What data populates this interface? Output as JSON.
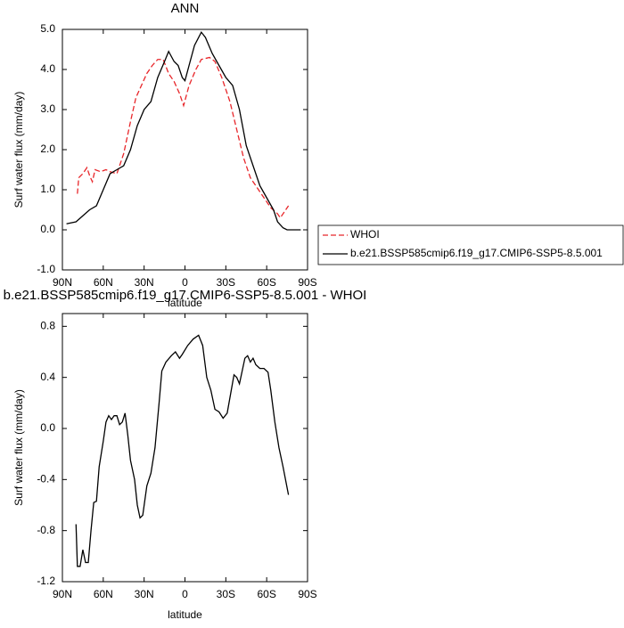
{
  "chart_data": [
    {
      "type": "line",
      "title": "ANN",
      "xlabel": "latitude",
      "ylabel": "Surf water flux (mm/day)",
      "xlim": [
        90,
        -90
      ],
      "xticks": [
        {
          "value": 90,
          "label": "90N"
        },
        {
          "value": 60,
          "label": "60N"
        },
        {
          "value": 30,
          "label": "30N"
        },
        0,
        {
          "value": -30,
          "label": "30S"
        },
        {
          "value": -60,
          "label": "60S"
        },
        {
          "value": -90,
          "label": "90S"
        }
      ],
      "ylim": [
        -1,
        5
      ],
      "yticks": [
        {
          "value": -1,
          "label": "-1.0"
        },
        {
          "value": 0,
          "label": "0.0"
        },
        {
          "value": 1,
          "label": "1.0"
        },
        {
          "value": 2,
          "label": "2.0"
        },
        {
          "value": 3,
          "label": "3.0"
        },
        {
          "value": 4,
          "label": "4.0"
        },
        {
          "value": 5,
          "label": "5.0"
        }
      ],
      "legend": "right",
      "series": [
        {
          "name": "WHOI",
          "color": "#e8262a",
          "dashed": true,
          "x": [
            79,
            78,
            75,
            72,
            70,
            68,
            66,
            62,
            58,
            55,
            50,
            45,
            40,
            36,
            32,
            28,
            24,
            20,
            16,
            12,
            8,
            4,
            1,
            -3,
            -8,
            -12,
            -18,
            -22,
            -27,
            -33,
            -38,
            -43,
            -48,
            -53,
            -58,
            -63,
            -68,
            -70,
            -73,
            -76
          ],
          "values": [
            0.9,
            1.3,
            1.4,
            1.55,
            1.35,
            1.2,
            1.5,
            1.45,
            1.5,
            1.45,
            1.4,
            1.9,
            2.7,
            3.3,
            3.6,
            3.9,
            4.1,
            4.25,
            4.25,
            3.9,
            3.7,
            3.4,
            3.1,
            3.6,
            4.0,
            4.25,
            4.3,
            4.2,
            3.8,
            3.2,
            2.5,
            1.8,
            1.3,
            1.05,
            0.8,
            0.55,
            0.4,
            0.3,
            0.45,
            0.6
          ]
        },
        {
          "name": "b.e21.BSSP585cmip6.f19_g17.CMIP6-SSP5-8.5.001",
          "color": "#000000",
          "dashed": false,
          "x": [
            87,
            80,
            75,
            70,
            65,
            60,
            55,
            50,
            45,
            40,
            35,
            30,
            25,
            20,
            15,
            12,
            8,
            5,
            2,
            0,
            -3,
            -7,
            -12,
            -15,
            -20,
            -25,
            -30,
            -35,
            -40,
            -45,
            -50,
            -55,
            -60,
            -65,
            -68,
            -72,
            -75,
            -80,
            -85
          ],
          "values": [
            0.15,
            0.2,
            0.35,
            0.5,
            0.6,
            1.0,
            1.4,
            1.5,
            1.6,
            2.0,
            2.6,
            3.0,
            3.2,
            3.8,
            4.2,
            4.45,
            4.2,
            4.1,
            3.8,
            3.72,
            4.1,
            4.6,
            4.93,
            4.8,
            4.4,
            4.1,
            3.8,
            3.6,
            3.0,
            2.1,
            1.6,
            1.1,
            0.8,
            0.5,
            0.2,
            0.05,
            0.0,
            0.0,
            0.0
          ]
        }
      ]
    },
    {
      "type": "line",
      "title": "b.e21.BSSP585cmip6.f19_g17.CMIP6-SSP5-8.5.001 - WHOI",
      "xlabel": "latitude",
      "ylabel": "Surf water flux (mm/day)",
      "xlim": [
        90,
        -90
      ],
      "xticks": [
        {
          "value": 90,
          "label": "90N"
        },
        {
          "value": 60,
          "label": "60N"
        },
        {
          "value": 30,
          "label": "30N"
        },
        0,
        {
          "value": -30,
          "label": "30S"
        },
        {
          "value": -60,
          "label": "60S"
        },
        {
          "value": -90,
          "label": "90S"
        }
      ],
      "ylim": [
        -1.2,
        0.9
      ],
      "yticks": [
        -1.2,
        -0.8,
        -0.4,
        {
          "value": 0,
          "label": "0.0"
        },
        0.4,
        0.8
      ],
      "series": [
        {
          "color": "#000000",
          "dashed": false,
          "x": [
            80,
            79,
            77,
            75,
            73,
            71,
            69,
            67,
            65,
            63,
            60,
            58,
            56,
            54,
            52,
            50,
            48,
            46,
            44,
            42,
            40,
            37,
            35,
            33,
            31,
            28,
            25,
            22,
            19,
            17,
            14,
            10,
            7,
            4,
            2,
            -2,
            -6,
            -10,
            -13,
            -16,
            -19,
            -22,
            -25,
            -28,
            -31,
            -34,
            -36,
            -38,
            -40,
            -42,
            -44,
            -46,
            -48,
            -50,
            -52,
            -55,
            -58,
            -61,
            -63,
            -66,
            -69,
            -72,
            -76
          ],
          "values": [
            -0.75,
            -1.08,
            -1.08,
            -0.95,
            -1.05,
            -1.05,
            -0.8,
            -0.58,
            -0.57,
            -0.3,
            -0.1,
            0.05,
            0.1,
            0.07,
            0.1,
            0.1,
            0.03,
            0.05,
            0.12,
            -0.05,
            -0.25,
            -0.4,
            -0.6,
            -0.7,
            -0.68,
            -0.45,
            -0.35,
            -0.15,
            0.2,
            0.45,
            0.52,
            0.57,
            0.6,
            0.55,
            0.58,
            0.65,
            0.7,
            0.73,
            0.65,
            0.4,
            0.3,
            0.15,
            0.13,
            0.08,
            0.12,
            0.3,
            0.42,
            0.4,
            0.35,
            0.45,
            0.55,
            0.57,
            0.52,
            0.55,
            0.5,
            0.47,
            0.47,
            0.44,
            0.3,
            0.05,
            -0.15,
            -0.3,
            -0.52
          ]
        }
      ]
    }
  ]
}
